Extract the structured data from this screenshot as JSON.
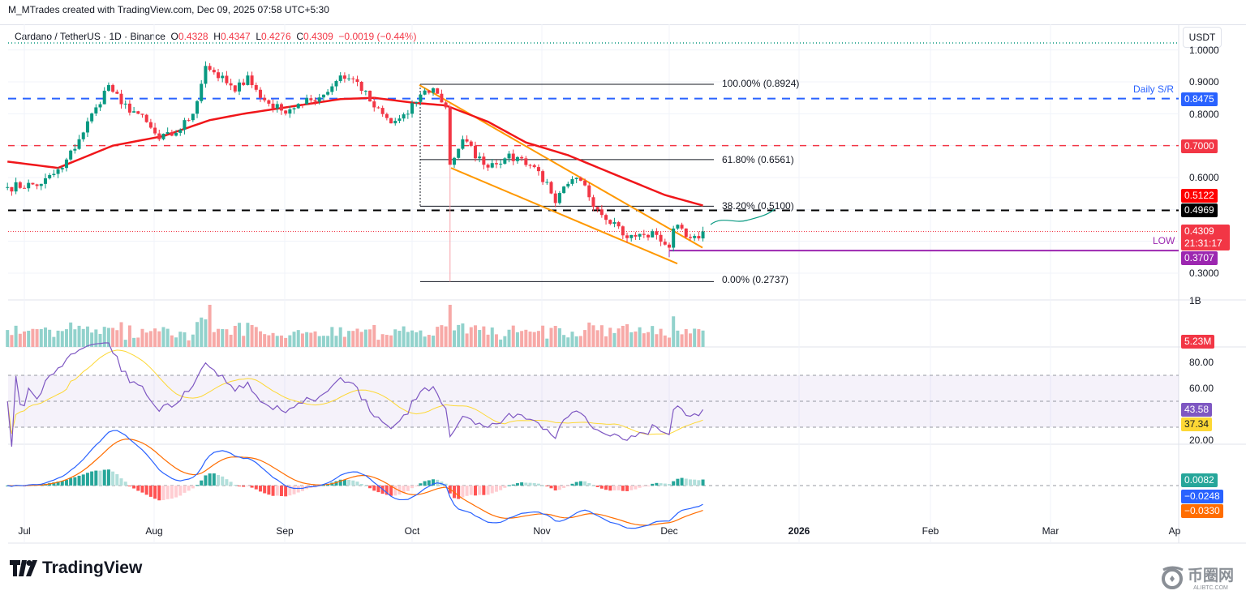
{
  "header": {
    "credit": "M_MTrades created with TradingView.com, Dec 09, 2025 07:58 UTC+5:30",
    "symbol": "Cardano / TetherUS · 1D · Binance",
    "open_label": "O",
    "open": "0.4328",
    "high_label": "H",
    "high": "0.4347",
    "low_label": "L",
    "low": "0.4276",
    "close_label": "C",
    "close": "0.4309",
    "change": "−0.0019 (−0.44%)",
    "currency": "USDT"
  },
  "price_axis": {
    "ticks": [
      "1.0000",
      "0.9000",
      "0.8000",
      "0.6000",
      "0.3000"
    ],
    "tags": {
      "daily_sr": "0.8475",
      "resistance": "0.7000",
      "ma": "0.5122",
      "level": "0.4969",
      "last_price": "0.4309",
      "countdown": "21:31:17",
      "low": "0.3707"
    }
  },
  "annotations": {
    "daily_sr_label": "Daily S/R",
    "low_label": "LOW",
    "fib": [
      {
        "label": "100.00% (0.8924)",
        "value": 0.8924
      },
      {
        "label": "61.80% (0.6561)",
        "value": 0.6561
      },
      {
        "label": "38.20% (0.5100)",
        "value": 0.51
      },
      {
        "label": "0.00% (0.2737)",
        "value": 0.2737
      }
    ]
  },
  "volume": {
    "axis_label": "1B",
    "last": "5.23M"
  },
  "rsi": {
    "ticks": [
      "80.00",
      "60.00",
      "20.00"
    ],
    "value": "43.58",
    "signal": "37.34"
  },
  "macd": {
    "histogram": "0.0082",
    "macd": "−0.0248",
    "signal": "−0.0330"
  },
  "time_axis": [
    "Jul",
    "Aug",
    "Sep",
    "Oct",
    "Nov",
    "Dec",
    "2026",
    "Feb",
    "Mar",
    "Ap"
  ],
  "colors": {
    "up": "#089981",
    "down": "#f23645",
    "ma": "#f0161a",
    "channel": "#ff9800",
    "sr": "#2962ff",
    "low": "#9c27b0",
    "rsi": "#7e57c2",
    "rsi_ma": "#fdd835",
    "macd": "#2962ff",
    "macd_signal": "#ff6d00"
  },
  "brand": {
    "logo": "TradingView",
    "watermark": "币圈网",
    "watermark_sub": "ALIBTC.COM"
  },
  "chart_data": {
    "type": "candlestick",
    "title": "Cardano / TetherUS 1D Binance",
    "x_unit": "days since Jul 1 2025",
    "approx_closes": [
      [
        -4,
        0.57
      ],
      [
        4,
        0.58
      ],
      [
        9,
        0.63
      ],
      [
        13,
        0.72
      ],
      [
        17,
        0.82
      ],
      [
        20,
        0.89
      ],
      [
        23,
        0.83
      ],
      [
        27,
        0.8
      ],
      [
        32,
        0.72
      ],
      [
        36,
        0.74
      ],
      [
        40,
        0.8
      ],
      [
        43,
        0.95
      ],
      [
        45,
        0.93
      ],
      [
        50,
        0.87
      ],
      [
        53,
        0.92
      ],
      [
        56,
        0.85
      ],
      [
        61,
        0.81
      ],
      [
        66,
        0.83
      ],
      [
        71,
        0.86
      ],
      [
        75,
        0.92
      ],
      [
        79,
        0.9
      ],
      [
        83,
        0.82
      ],
      [
        87,
        0.77
      ],
      [
        91,
        0.8
      ],
      [
        94,
        0.86
      ],
      [
        97,
        0.88
      ],
      [
        100,
        0.82
      ],
      [
        101,
        0.64
      ],
      [
        104,
        0.72
      ],
      [
        109,
        0.64
      ],
      [
        114,
        0.66
      ],
      [
        118,
        0.66
      ],
      [
        122,
        0.62
      ],
      [
        125,
        0.55
      ],
      [
        126,
        0.52
      ],
      [
        129,
        0.58
      ],
      [
        132,
        0.59
      ],
      [
        136,
        0.5
      ],
      [
        140,
        0.46
      ],
      [
        143,
        0.41
      ],
      [
        147,
        0.42
      ],
      [
        150,
        0.42
      ],
      [
        153,
        0.38
      ],
      [
        154,
        0.44
      ],
      [
        156,
        0.44
      ],
      [
        158,
        0.41
      ],
      [
        161,
        0.4309
      ]
    ],
    "ma50": [
      [
        -4,
        0.65
      ],
      [
        8,
        0.63
      ],
      [
        21,
        0.7
      ],
      [
        33,
        0.73
      ],
      [
        44,
        0.78
      ],
      [
        52,
        0.8
      ],
      [
        62,
        0.82
      ],
      [
        75,
        0.846
      ],
      [
        83,
        0.85
      ],
      [
        92,
        0.835
      ],
      [
        100,
        0.826
      ],
      [
        110,
        0.775
      ],
      [
        119,
        0.71
      ],
      [
        129,
        0.67
      ],
      [
        140,
        0.61
      ],
      [
        152,
        0.545
      ],
      [
        161,
        0.5122
      ]
    ],
    "horizontal_levels": [
      0.8475,
      0.7,
      0.4969,
      0.3707
    ],
    "ylim": [
      0.25,
      1.02
    ]
  }
}
